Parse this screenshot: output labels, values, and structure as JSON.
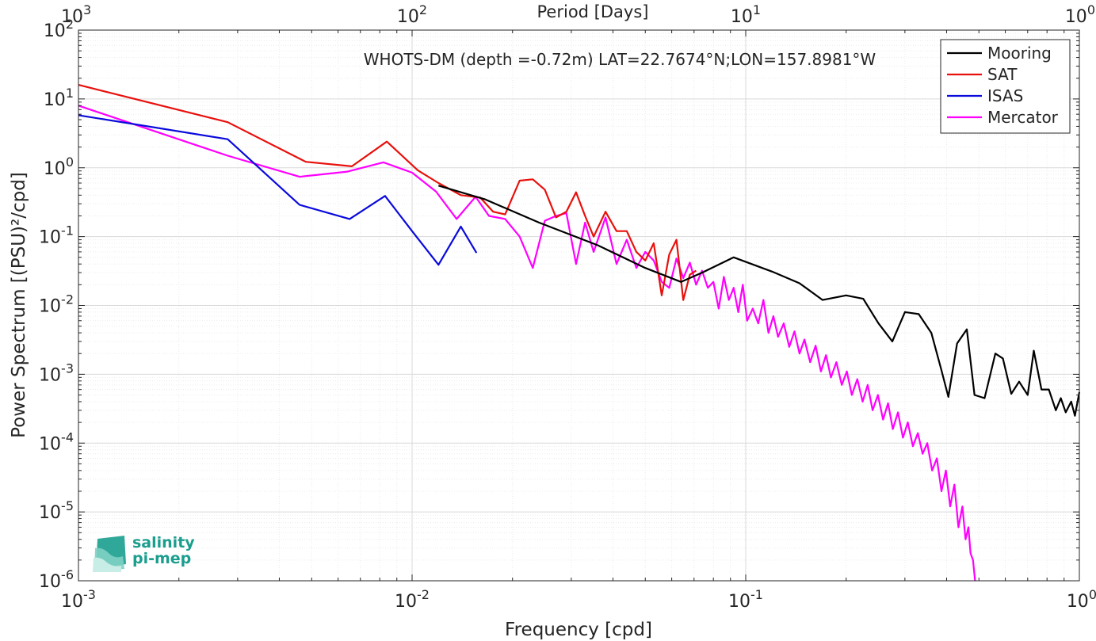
{
  "chart_data": {
    "type": "line",
    "title": "WHOTS-DM (depth =-0.72m) LAT=22.7674°N;LON=157.8981°W",
    "xlabel": "Frequency [cpd]",
    "ylabel": "Power Spectrum [(PSU)²/cpd]",
    "top_xlabel": "Period [Days]",
    "x_scale": "log",
    "y_scale": "log",
    "xlim": [
      0.001,
      1
    ],
    "ylim": [
      1e-06,
      100
    ],
    "grid": true,
    "legend_position": "top-right",
    "x_ticks": [
      {
        "base": "10",
        "exp": "-3"
      },
      {
        "base": "10",
        "exp": "-2"
      },
      {
        "base": "10",
        "exp": "-1"
      },
      {
        "base": "10",
        "exp": "0"
      }
    ],
    "top_x_ticks": [
      {
        "base": "10",
        "exp": "3"
      },
      {
        "base": "10",
        "exp": "2"
      },
      {
        "base": "10",
        "exp": "1"
      },
      {
        "base": "10",
        "exp": "0"
      }
    ],
    "y_ticks": [
      {
        "base": "10",
        "exp": "-6"
      },
      {
        "base": "10",
        "exp": "-5"
      },
      {
        "base": "10",
        "exp": "-4"
      },
      {
        "base": "10",
        "exp": "-3"
      },
      {
        "base": "10",
        "exp": "-2"
      },
      {
        "base": "10",
        "exp": "-1"
      },
      {
        "base": "10",
        "exp": "0"
      },
      {
        "base": "10",
        "exp": "1"
      },
      {
        "base": "10",
        "exp": "2"
      }
    ],
    "series": [
      {
        "name": "Mooring",
        "color": "#000000",
        "x": [
          0.012,
          0.0165,
          0.024,
          0.036,
          0.05,
          0.064,
          0.074,
          0.092,
          0.12,
          0.145,
          0.17,
          0.2,
          0.225,
          0.25,
          0.275,
          0.3,
          0.33,
          0.36,
          0.385,
          0.405,
          0.43,
          0.46,
          0.485,
          0.52,
          0.56,
          0.59,
          0.625,
          0.66,
          0.7,
          0.73,
          0.77,
          0.81,
          0.85,
          0.88,
          0.91,
          0.945,
          0.97,
          1.0
        ],
        "y": [
          0.55,
          0.35,
          0.16,
          0.075,
          0.035,
          0.022,
          0.03,
          0.05,
          0.031,
          0.021,
          0.012,
          0.014,
          0.0125,
          0.0055,
          0.003,
          0.008,
          0.0075,
          0.004,
          0.0012,
          0.00047,
          0.0028,
          0.0045,
          0.0005,
          0.00045,
          0.002,
          0.0017,
          0.00052,
          0.00078,
          0.0005,
          0.0022,
          0.0006,
          0.0006,
          0.0003,
          0.00045,
          0.00028,
          0.0004,
          0.00025,
          0.00055
        ]
      },
      {
        "name": "SAT",
        "color": "#e8100c",
        "x": [
          0.001,
          0.0028,
          0.0048,
          0.0066,
          0.0084,
          0.0104,
          0.012,
          0.014,
          0.016,
          0.0175,
          0.019,
          0.021,
          0.023,
          0.025,
          0.027,
          0.029,
          0.031,
          0.033,
          0.035,
          0.038,
          0.041,
          0.044,
          0.047,
          0.05,
          0.053,
          0.056,
          0.059,
          0.062,
          0.065,
          0.068,
          0.071
        ],
        "y": [
          16,
          4.6,
          1.22,
          1.05,
          2.4,
          0.92,
          0.6,
          0.4,
          0.37,
          0.23,
          0.21,
          0.65,
          0.68,
          0.48,
          0.19,
          0.23,
          0.44,
          0.2,
          0.1,
          0.23,
          0.12,
          0.12,
          0.06,
          0.045,
          0.08,
          0.014,
          0.055,
          0.09,
          0.012,
          0.028,
          0.032
        ]
      },
      {
        "name": "ISAS",
        "color": "#0a0adc",
        "x": [
          0.001,
          0.0028,
          0.0046,
          0.0065,
          0.0083,
          0.01,
          0.012,
          0.014,
          0.0156
        ],
        "y": [
          5.8,
          2.6,
          0.29,
          0.18,
          0.39,
          0.12,
          0.039,
          0.14,
          0.058
        ]
      },
      {
        "name": "Mercator",
        "color": "#ff00ff",
        "x": [
          0.001,
          0.0028,
          0.0046,
          0.0064,
          0.0082,
          0.01,
          0.0118,
          0.0136,
          0.0155,
          0.017,
          0.019,
          0.021,
          0.023,
          0.025,
          0.027,
          0.029,
          0.031,
          0.033,
          0.035,
          0.038,
          0.041,
          0.044,
          0.047,
          0.05,
          0.053,
          0.056,
          0.059,
          0.062,
          0.065,
          0.068,
          0.071,
          0.074,
          0.077,
          0.08,
          0.083,
          0.086,
          0.089,
          0.092,
          0.095,
          0.098,
          0.101,
          0.105,
          0.109,
          0.113,
          0.117,
          0.121,
          0.125,
          0.13,
          0.135,
          0.14,
          0.145,
          0.15,
          0.156,
          0.162,
          0.168,
          0.174,
          0.18,
          0.187,
          0.194,
          0.201,
          0.208,
          0.216,
          0.224,
          0.232,
          0.24,
          0.249,
          0.258,
          0.267,
          0.276,
          0.286,
          0.296,
          0.306,
          0.317,
          0.328,
          0.339,
          0.35,
          0.362,
          0.374,
          0.386,
          0.398,
          0.41,
          0.422,
          0.434,
          0.446,
          0.456,
          0.465,
          0.472,
          0.48,
          0.487
        ],
        "y": [
          8.0,
          1.5,
          0.74,
          0.88,
          1.2,
          0.85,
          0.45,
          0.18,
          0.38,
          0.2,
          0.18,
          0.1,
          0.035,
          0.17,
          0.2,
          0.22,
          0.04,
          0.16,
          0.06,
          0.19,
          0.04,
          0.09,
          0.035,
          0.06,
          0.045,
          0.022,
          0.018,
          0.048,
          0.025,
          0.042,
          0.02,
          0.032,
          0.018,
          0.022,
          0.009,
          0.026,
          0.012,
          0.018,
          0.008,
          0.02,
          0.006,
          0.009,
          0.0055,
          0.012,
          0.004,
          0.007,
          0.0035,
          0.0055,
          0.0025,
          0.0042,
          0.002,
          0.0032,
          0.0015,
          0.0026,
          0.0011,
          0.0019,
          0.0009,
          0.0015,
          0.0007,
          0.0011,
          0.0005,
          0.00085,
          0.0004,
          0.0007,
          0.0003,
          0.0005,
          0.00022,
          0.00038,
          0.00016,
          0.00028,
          0.00012,
          0.0002,
          9e-05,
          0.00014,
          7e-05,
          0.0001,
          4e-05,
          6e-05,
          2e-05,
          4e-05,
          1.2e-05,
          2.5e-05,
          6e-06,
          1.2e-05,
          4e-06,
          6e-06,
          2.5e-06,
          2e-06,
          1e-06
        ]
      }
    ]
  },
  "logo": {
    "line1": "salinity",
    "line2": "pi-mep"
  }
}
